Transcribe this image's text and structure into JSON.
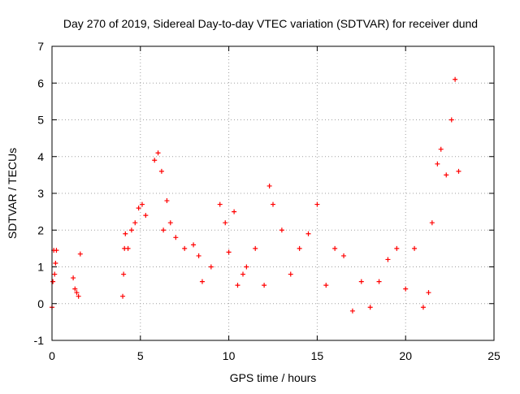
{
  "chart_data": {
    "type": "scatter",
    "title": "Day 270 of 2019, Sidereal Day-to-day VTEC variation (SDTVAR) for receiver dund",
    "xlabel": "GPS time / hours",
    "ylabel": "SDTVAR / TECUs",
    "xlim": [
      0,
      25
    ],
    "ylim": [
      -1,
      7
    ],
    "xticks": [
      "0",
      "5",
      "10",
      "15",
      "20",
      "25"
    ],
    "yticks": [
      "-1",
      "0",
      "1",
      "2",
      "3",
      "4",
      "5",
      "6",
      "7"
    ],
    "grid": true,
    "marker": "plus",
    "color": "#ff0000",
    "series": [
      {
        "name": "SDTVAR",
        "points": [
          [
            0.0,
            -0.1
          ],
          [
            0.05,
            0.6
          ],
          [
            0.1,
            1.45
          ],
          [
            0.15,
            0.8
          ],
          [
            0.2,
            1.1
          ],
          [
            0.25,
            1.45
          ],
          [
            1.2,
            0.7
          ],
          [
            1.3,
            0.4
          ],
          [
            1.4,
            0.3
          ],
          [
            1.5,
            0.2
          ],
          [
            1.6,
            1.35
          ],
          [
            4.0,
            0.2
          ],
          [
            4.05,
            0.8
          ],
          [
            4.1,
            1.5
          ],
          [
            4.15,
            1.9
          ],
          [
            4.3,
            1.5
          ],
          [
            4.5,
            2.0
          ],
          [
            4.7,
            2.2
          ],
          [
            4.9,
            2.6
          ],
          [
            5.1,
            2.7
          ],
          [
            5.3,
            2.4
          ],
          [
            5.8,
            3.9
          ],
          [
            6.0,
            4.1
          ],
          [
            6.2,
            3.6
          ],
          [
            6.3,
            2.0
          ],
          [
            6.5,
            2.8
          ],
          [
            6.7,
            2.2
          ],
          [
            7.0,
            1.8
          ],
          [
            7.5,
            1.5
          ],
          [
            8.0,
            1.6
          ],
          [
            8.3,
            1.3
          ],
          [
            8.5,
            0.6
          ],
          [
            9.0,
            1.0
          ],
          [
            9.5,
            2.7
          ],
          [
            9.8,
            2.2
          ],
          [
            10.0,
            1.4
          ],
          [
            10.3,
            2.5
          ],
          [
            10.5,
            0.5
          ],
          [
            10.8,
            0.8
          ],
          [
            11.0,
            1.0
          ],
          [
            11.5,
            1.5
          ],
          [
            12.0,
            0.5
          ],
          [
            12.3,
            3.2
          ],
          [
            12.5,
            2.7
          ],
          [
            13.0,
            2.0
          ],
          [
            13.5,
            0.8
          ],
          [
            14.0,
            1.5
          ],
          [
            14.5,
            1.9
          ],
          [
            15.0,
            2.7
          ],
          [
            15.5,
            0.5
          ],
          [
            16.0,
            1.5
          ],
          [
            16.5,
            1.3
          ],
          [
            17.0,
            -0.2
          ],
          [
            17.5,
            0.6
          ],
          [
            18.0,
            -0.1
          ],
          [
            18.5,
            0.6
          ],
          [
            19.0,
            1.2
          ],
          [
            19.5,
            1.5
          ],
          [
            20.0,
            0.4
          ],
          [
            20.5,
            1.5
          ],
          [
            21.0,
            -0.1
          ],
          [
            21.3,
            0.3
          ],
          [
            21.5,
            2.2
          ],
          [
            21.8,
            3.8
          ],
          [
            22.0,
            4.2
          ],
          [
            22.3,
            3.5
          ],
          [
            22.6,
            5.0
          ],
          [
            22.8,
            6.1
          ],
          [
            23.0,
            3.6
          ]
        ]
      }
    ]
  }
}
